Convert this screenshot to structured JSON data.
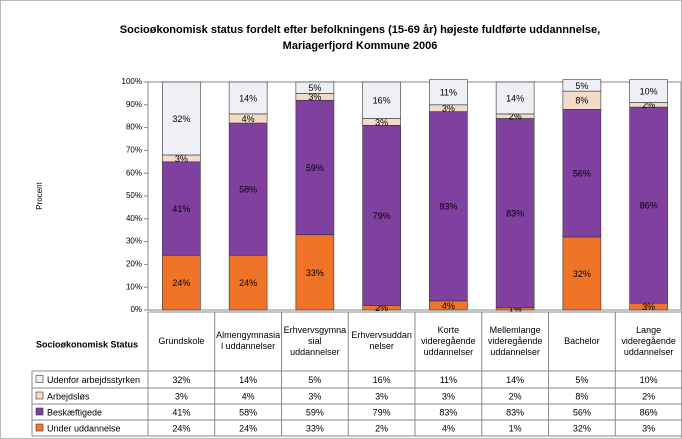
{
  "chart_data": {
    "type": "stacked_bar",
    "title": [
      "Socioøkonomisk status fordelt efter befolkningens (15-69 år) højeste fuldførte uddannnelse,",
      "Mariagerfjord Kommune 2006"
    ],
    "y_label": "Procent",
    "table_header": "Socioøkonomisk Status",
    "categories": [
      "Grundskole",
      "Almengymnasial uddannelser",
      "Erhvervsgymnasial uddannelser",
      "Erhvervsuddannelser",
      "Korte videregående uddannelser",
      "Mellemlange videregående uddannelser",
      "Bachelor",
      "Lange videregående uddannelser"
    ],
    "series": [
      {
        "name": "Under uddannelse",
        "color": "#f07428",
        "values": [
          24,
          24,
          33,
          2,
          4,
          1,
          32,
          3
        ],
        "value_labels": [
          "24%",
          "24%",
          "33%",
          "2%",
          "4%",
          "1%",
          "32%",
          "3%"
        ]
      },
      {
        "name": "Beskæftigede",
        "color": "#8040a0",
        "values": [
          41,
          58,
          59,
          79,
          83,
          83,
          56,
          86
        ],
        "value_labels": [
          "41%",
          "58%",
          "59%",
          "79%",
          "83%",
          "83%",
          "56%",
          "86%"
        ]
      },
      {
        "name": "Arbejdsløs",
        "color": "#f2dcc8",
        "values": [
          3,
          4,
          3,
          3,
          3,
          2,
          8,
          2
        ],
        "value_labels": [
          "3%",
          "4%",
          "3%",
          "3%",
          "3%",
          "2%",
          "8%",
          "2%"
        ]
      },
      {
        "name": "Udenfor arbejdsstyrken",
        "color": "#eef0f5",
        "values": [
          32,
          14,
          5,
          16,
          11,
          14,
          5,
          10
        ],
        "value_labels": [
          "32%",
          "14%",
          "5%",
          "16%",
          "11%",
          "14%",
          "5%",
          "10%"
        ]
      }
    ],
    "ylim": [
      0,
      100
    ],
    "yticks": [
      {
        "value": 0,
        "label": "0%"
      },
      {
        "value": 10,
        "label": "10%"
      },
      {
        "value": 20,
        "label": "20%"
      },
      {
        "value": 30,
        "label": "30%"
      },
      {
        "value": 40,
        "label": "40%"
      },
      {
        "value": 50,
        "label": "50%"
      },
      {
        "value": 60,
        "label": "60%"
      },
      {
        "value": 70,
        "label": "70%"
      },
      {
        "value": 80,
        "label": "80%"
      },
      {
        "value": 90,
        "label": "90%"
      },
      {
        "value": 100,
        "label": "100%"
      }
    ],
    "grid": false
  }
}
